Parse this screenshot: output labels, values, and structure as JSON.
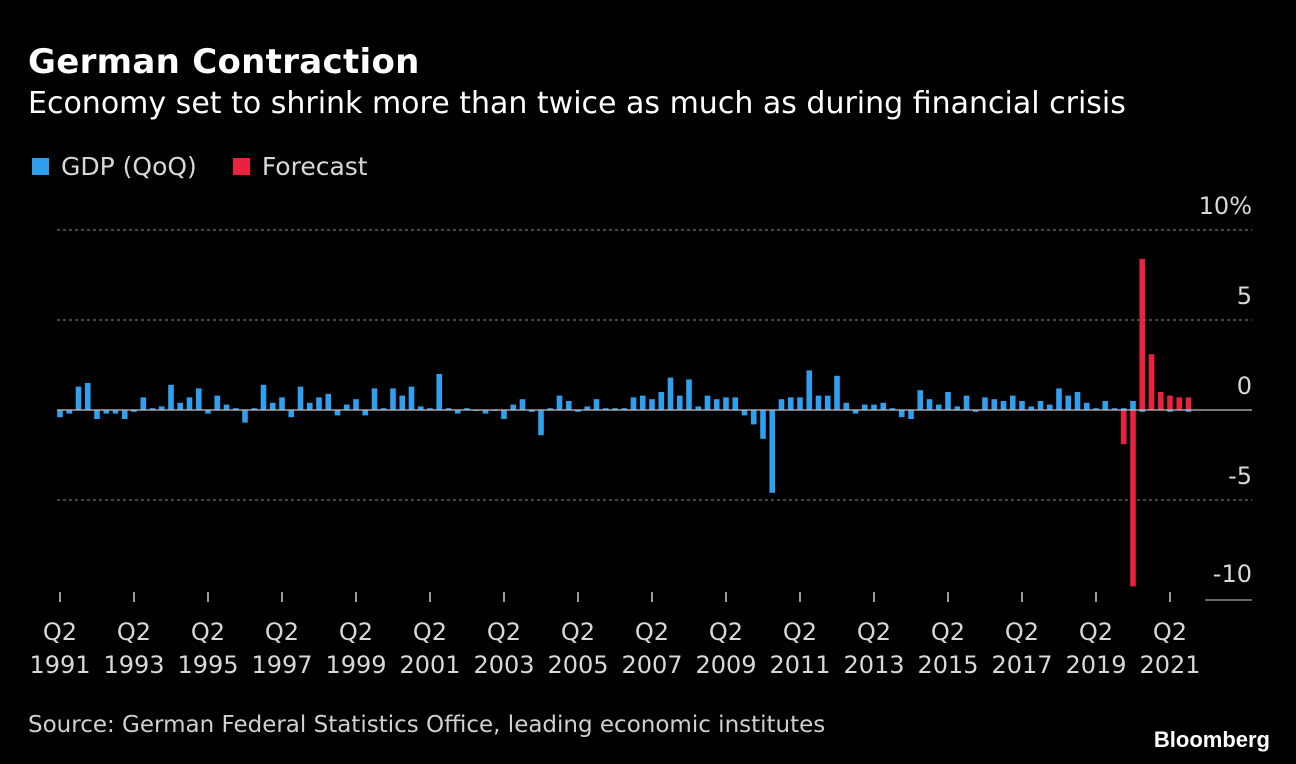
{
  "header": {
    "title": "German Contraction",
    "subtitle": "Economy set to shrink more than twice as much as during financial crisis"
  },
  "footer": {
    "source": "Source: German Federal Statistics Office, leading economic institutes",
    "brand": "Bloomberg"
  },
  "colors": {
    "background": "#000000",
    "gdp": "#2f9ff0",
    "forecast": "#e8223f",
    "grid": "#8a8a8a",
    "text": "#ffffff"
  },
  "chart_data": {
    "type": "bar",
    "title": "German Contraction",
    "subtitle": "Economy set to shrink more than twice as much as during financial crisis",
    "xlabel": "",
    "ylabel": "",
    "ylim": [
      -10,
      10
    ],
    "yticks": [
      10,
      5,
      0,
      -5,
      -10
    ],
    "ytick_labels": [
      "10%",
      "5",
      "0",
      "-5",
      "-10"
    ],
    "grid": true,
    "legend_position": "top-left",
    "legend": [
      {
        "name": "GDP (QoQ)",
        "color": "#2f9ff0"
      },
      {
        "name": "Forecast",
        "color": "#e8223f"
      }
    ],
    "xtick_labels": [
      {
        "top": "Q2",
        "bottom": "1991",
        "quarter": "1991Q2"
      },
      {
        "top": "Q2",
        "bottom": "1993",
        "quarter": "1993Q2"
      },
      {
        "top": "Q2",
        "bottom": "1995",
        "quarter": "1995Q2"
      },
      {
        "top": "Q2",
        "bottom": "1997",
        "quarter": "1997Q2"
      },
      {
        "top": "Q2",
        "bottom": "1999",
        "quarter": "1999Q2"
      },
      {
        "top": "Q2",
        "bottom": "2001",
        "quarter": "2001Q2"
      },
      {
        "top": "Q2",
        "bottom": "2003",
        "quarter": "2003Q2"
      },
      {
        "top": "Q2",
        "bottom": "2005",
        "quarter": "2005Q2"
      },
      {
        "top": "Q2",
        "bottom": "2007",
        "quarter": "2007Q2"
      },
      {
        "top": "Q2",
        "bottom": "2009",
        "quarter": "2009Q2"
      },
      {
        "top": "Q2",
        "bottom": "2011",
        "quarter": "2011Q2"
      },
      {
        "top": "Q2",
        "bottom": "2013",
        "quarter": "2013Q2"
      },
      {
        "top": "Q2",
        "bottom": "2015",
        "quarter": "2015Q2"
      },
      {
        "top": "Q2",
        "bottom": "2017",
        "quarter": "2017Q2"
      },
      {
        "top": "Q2",
        "bottom": "2019",
        "quarter": "2019Q2"
      },
      {
        "top": "Q2",
        "bottom": "2021",
        "quarter": "2021Q2"
      }
    ],
    "start_quarter": "1991Q2",
    "series": [
      {
        "name": "GDP (QoQ)",
        "color": "#2f9ff0",
        "values": [
          -0.4,
          -0.2,
          1.3,
          1.5,
          -0.5,
          -0.2,
          -0.2,
          -0.5,
          -0.1,
          0.7,
          0.1,
          0.2,
          1.4,
          0.4,
          0.7,
          1.2,
          -0.2,
          0.8,
          0.3,
          0.1,
          -0.7,
          0.1,
          1.4,
          0.4,
          0.7,
          -0.4,
          1.3,
          0.4,
          0.7,
          0.9,
          -0.3,
          0.3,
          0.6,
          -0.3,
          1.2,
          0.1,
          1.2,
          0.8,
          1.3,
          0.2,
          0.1,
          2.0,
          0.1,
          -0.2,
          0.1,
          0.0,
          -0.2,
          0.0,
          -0.5,
          0.3,
          0.6,
          -0.1,
          -1.4,
          0.1,
          0.8,
          0.5,
          -0.1,
          0.2,
          0.6,
          0.1,
          0.1,
          0.1,
          0.7,
          0.8,
          0.6,
          1.0,
          1.8,
          0.8,
          1.7,
          0.2,
          0.8,
          0.6,
          0.7,
          0.7,
          -0.3,
          -0.8,
          -1.6,
          -4.6,
          0.6,
          0.7,
          0.7,
          2.2,
          0.8,
          0.8,
          1.9,
          0.4,
          -0.2,
          0.3,
          0.3,
          0.4,
          0.1,
          -0.4,
          -0.5,
          1.1,
          0.6,
          0.3,
          1.0,
          0.2,
          0.8,
          -0.1,
          0.7,
          0.6,
          0.5,
          0.8,
          0.5,
          0.2,
          0.5,
          0.3,
          1.2,
          0.8,
          1.0,
          0.4,
          0.1,
          0.5,
          0.1,
          0.1,
          0.5,
          -0.1,
          0.4,
          0.6,
          -0.1,
          0.2,
          -0.1
        ]
      },
      {
        "name": "Forecast",
        "color": "#e8223f",
        "start_quarter": "2020Q1",
        "values": [
          -1.9,
          -9.8,
          8.4,
          3.1,
          1.0,
          0.8,
          0.7,
          0.7
        ]
      }
    ]
  }
}
